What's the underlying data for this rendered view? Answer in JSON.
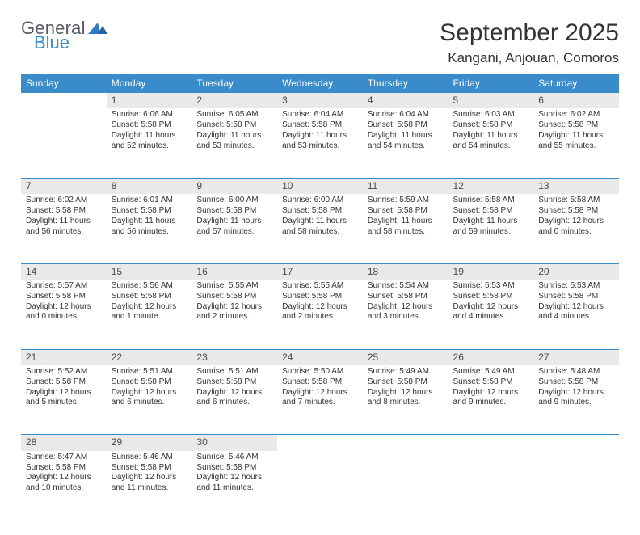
{
  "logo": {
    "general": "General",
    "blue": "Blue",
    "triangle_color": "#2f7bc0"
  },
  "title": "September 2025",
  "location": "Kangani, Anjouan, Comoros",
  "colors": {
    "header_bg": "#3a8bc9",
    "header_text": "#ffffff",
    "daynum_bg": "#e9e9e9",
    "daynum_border": "#3a8bc9",
    "text": "#333333"
  },
  "day_headers": [
    "Sunday",
    "Monday",
    "Tuesday",
    "Wednesday",
    "Thursday",
    "Friday",
    "Saturday"
  ],
  "weeks": [
    [
      {
        "num": "",
        "lines": []
      },
      {
        "num": "1",
        "lines": [
          "Sunrise: 6:06 AM",
          "Sunset: 5:58 PM",
          "Daylight: 11 hours and 52 minutes."
        ]
      },
      {
        "num": "2",
        "lines": [
          "Sunrise: 6:05 AM",
          "Sunset: 5:58 PM",
          "Daylight: 11 hours and 53 minutes."
        ]
      },
      {
        "num": "3",
        "lines": [
          "Sunrise: 6:04 AM",
          "Sunset: 5:58 PM",
          "Daylight: 11 hours and 53 minutes."
        ]
      },
      {
        "num": "4",
        "lines": [
          "Sunrise: 6:04 AM",
          "Sunset: 5:58 PM",
          "Daylight: 11 hours and 54 minutes."
        ]
      },
      {
        "num": "5",
        "lines": [
          "Sunrise: 6:03 AM",
          "Sunset: 5:58 PM",
          "Daylight: 11 hours and 54 minutes."
        ]
      },
      {
        "num": "6",
        "lines": [
          "Sunrise: 6:02 AM",
          "Sunset: 5:58 PM",
          "Daylight: 11 hours and 55 minutes."
        ]
      }
    ],
    [
      {
        "num": "7",
        "lines": [
          "Sunrise: 6:02 AM",
          "Sunset: 5:58 PM",
          "Daylight: 11 hours and 56 minutes."
        ]
      },
      {
        "num": "8",
        "lines": [
          "Sunrise: 6:01 AM",
          "Sunset: 5:58 PM",
          "Daylight: 11 hours and 56 minutes."
        ]
      },
      {
        "num": "9",
        "lines": [
          "Sunrise: 6:00 AM",
          "Sunset: 5:58 PM",
          "Daylight: 11 hours and 57 minutes."
        ]
      },
      {
        "num": "10",
        "lines": [
          "Sunrise: 6:00 AM",
          "Sunset: 5:58 PM",
          "Daylight: 11 hours and 58 minutes."
        ]
      },
      {
        "num": "11",
        "lines": [
          "Sunrise: 5:59 AM",
          "Sunset: 5:58 PM",
          "Daylight: 11 hours and 58 minutes."
        ]
      },
      {
        "num": "12",
        "lines": [
          "Sunrise: 5:58 AM",
          "Sunset: 5:58 PM",
          "Daylight: 11 hours and 59 minutes."
        ]
      },
      {
        "num": "13",
        "lines": [
          "Sunrise: 5:58 AM",
          "Sunset: 5:58 PM",
          "Daylight: 12 hours and 0 minutes."
        ]
      }
    ],
    [
      {
        "num": "14",
        "lines": [
          "Sunrise: 5:57 AM",
          "Sunset: 5:58 PM",
          "Daylight: 12 hours and 0 minutes."
        ]
      },
      {
        "num": "15",
        "lines": [
          "Sunrise: 5:56 AM",
          "Sunset: 5:58 PM",
          "Daylight: 12 hours and 1 minute."
        ]
      },
      {
        "num": "16",
        "lines": [
          "Sunrise: 5:55 AM",
          "Sunset: 5:58 PM",
          "Daylight: 12 hours and 2 minutes."
        ]
      },
      {
        "num": "17",
        "lines": [
          "Sunrise: 5:55 AM",
          "Sunset: 5:58 PM",
          "Daylight: 12 hours and 2 minutes."
        ]
      },
      {
        "num": "18",
        "lines": [
          "Sunrise: 5:54 AM",
          "Sunset: 5:58 PM",
          "Daylight: 12 hours and 3 minutes."
        ]
      },
      {
        "num": "19",
        "lines": [
          "Sunrise: 5:53 AM",
          "Sunset: 5:58 PM",
          "Daylight: 12 hours and 4 minutes."
        ]
      },
      {
        "num": "20",
        "lines": [
          "Sunrise: 5:53 AM",
          "Sunset: 5:58 PM",
          "Daylight: 12 hours and 4 minutes."
        ]
      }
    ],
    [
      {
        "num": "21",
        "lines": [
          "Sunrise: 5:52 AM",
          "Sunset: 5:58 PM",
          "Daylight: 12 hours and 5 minutes."
        ]
      },
      {
        "num": "22",
        "lines": [
          "Sunrise: 5:51 AM",
          "Sunset: 5:58 PM",
          "Daylight: 12 hours and 6 minutes."
        ]
      },
      {
        "num": "23",
        "lines": [
          "Sunrise: 5:51 AM",
          "Sunset: 5:58 PM",
          "Daylight: 12 hours and 6 minutes."
        ]
      },
      {
        "num": "24",
        "lines": [
          "Sunrise: 5:50 AM",
          "Sunset: 5:58 PM",
          "Daylight: 12 hours and 7 minutes."
        ]
      },
      {
        "num": "25",
        "lines": [
          "Sunrise: 5:49 AM",
          "Sunset: 5:58 PM",
          "Daylight: 12 hours and 8 minutes."
        ]
      },
      {
        "num": "26",
        "lines": [
          "Sunrise: 5:49 AM",
          "Sunset: 5:58 PM",
          "Daylight: 12 hours and 9 minutes."
        ]
      },
      {
        "num": "27",
        "lines": [
          "Sunrise: 5:48 AM",
          "Sunset: 5:58 PM",
          "Daylight: 12 hours and 9 minutes."
        ]
      }
    ],
    [
      {
        "num": "28",
        "lines": [
          "Sunrise: 5:47 AM",
          "Sunset: 5:58 PM",
          "Daylight: 12 hours and 10 minutes."
        ]
      },
      {
        "num": "29",
        "lines": [
          "Sunrise: 5:46 AM",
          "Sunset: 5:58 PM",
          "Daylight: 12 hours and 11 minutes."
        ]
      },
      {
        "num": "30",
        "lines": [
          "Sunrise: 5:46 AM",
          "Sunset: 5:58 PM",
          "Daylight: 12 hours and 11 minutes."
        ]
      },
      {
        "num": "",
        "lines": []
      },
      {
        "num": "",
        "lines": []
      },
      {
        "num": "",
        "lines": []
      },
      {
        "num": "",
        "lines": []
      }
    ]
  ]
}
